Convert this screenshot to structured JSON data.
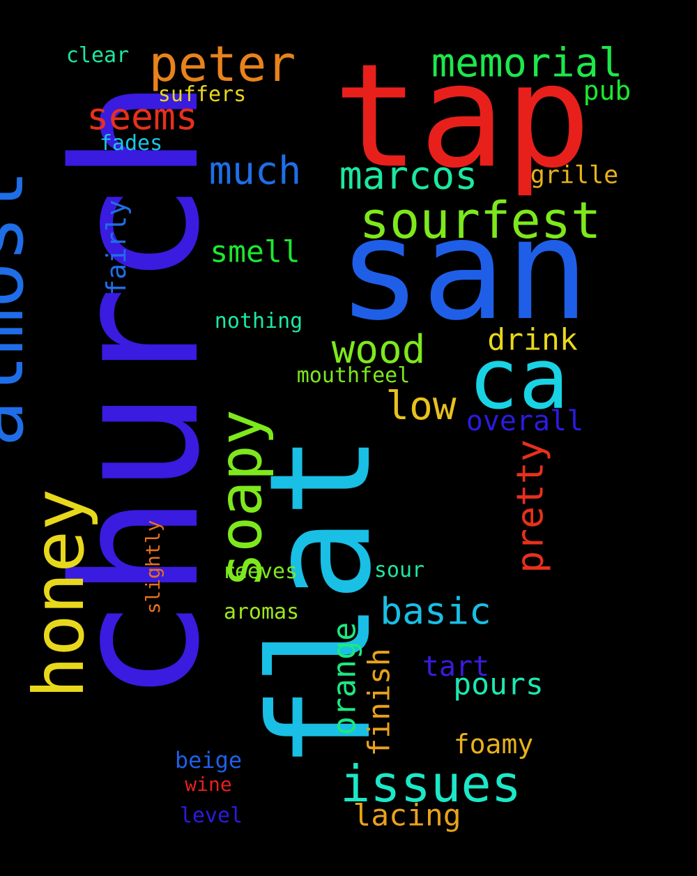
{
  "background": "#000000",
  "words": [
    {
      "text": "church",
      "color": "#3a1be0"
    },
    {
      "text": "tap",
      "color": "#e8201c"
    },
    {
      "text": "san",
      "color": "#1f5fe8"
    },
    {
      "text": "flat",
      "color": "#19bfe4"
    },
    {
      "text": "almost",
      "color": "#1f6ee8"
    },
    {
      "text": "honey",
      "color": "#e8d81c"
    },
    {
      "text": "ca",
      "color": "#19d3e4"
    },
    {
      "text": "soapy",
      "color": "#7ee81c"
    },
    {
      "text": "peter",
      "color": "#e8821c"
    },
    {
      "text": "sourfest",
      "color": "#7ee81c"
    },
    {
      "text": "memorial",
      "color": "#1ce84a"
    },
    {
      "text": "marcos",
      "color": "#1ce8a0"
    },
    {
      "text": "issues",
      "color": "#1ce8c8"
    },
    {
      "text": "much",
      "color": "#1f6ee8"
    },
    {
      "text": "seems",
      "color": "#e8301c"
    },
    {
      "text": "wood",
      "color": "#7ee81c"
    },
    {
      "text": "low",
      "color": "#e8c21c"
    },
    {
      "text": "basic",
      "color": "#19bfe4"
    },
    {
      "text": "pretty",
      "color": "#e8301c"
    },
    {
      "text": "orange",
      "color": "#1ce880"
    },
    {
      "text": "finish",
      "color": "#e8a21c"
    },
    {
      "text": "drink",
      "color": "#e8d81c"
    },
    {
      "text": "smell",
      "color": "#1ce830"
    },
    {
      "text": "pours",
      "color": "#1ce8b0"
    },
    {
      "text": "overall",
      "color": "#2b1be0"
    },
    {
      "text": "tart",
      "color": "#3a1be0"
    },
    {
      "text": "lacing",
      "color": "#e8a21c"
    },
    {
      "text": "foamy",
      "color": "#e8b21c"
    },
    {
      "text": "fairly",
      "color": "#1f6ee8"
    },
    {
      "text": "grille",
      "color": "#e8b21c"
    },
    {
      "text": "pub",
      "color": "#1ce830"
    },
    {
      "text": "suffers",
      "color": "#e8d81c"
    },
    {
      "text": "clear",
      "color": "#1ce8a0"
    },
    {
      "text": "fades",
      "color": "#19c8e4"
    },
    {
      "text": "nothing",
      "color": "#1ce8a0"
    },
    {
      "text": "mouthfeel",
      "color": "#7ee81c"
    },
    {
      "text": "reeves",
      "color": "#7ee81c"
    },
    {
      "text": "sour",
      "color": "#1ce8a0"
    },
    {
      "text": "aromas",
      "color": "#9ee81c"
    },
    {
      "text": "slightly",
      "color": "#e8721c"
    },
    {
      "text": "beige",
      "color": "#1f5fe8"
    },
    {
      "text": "wine",
      "color": "#e8201c"
    },
    {
      "text": "level",
      "color": "#2b1be0"
    }
  ]
}
